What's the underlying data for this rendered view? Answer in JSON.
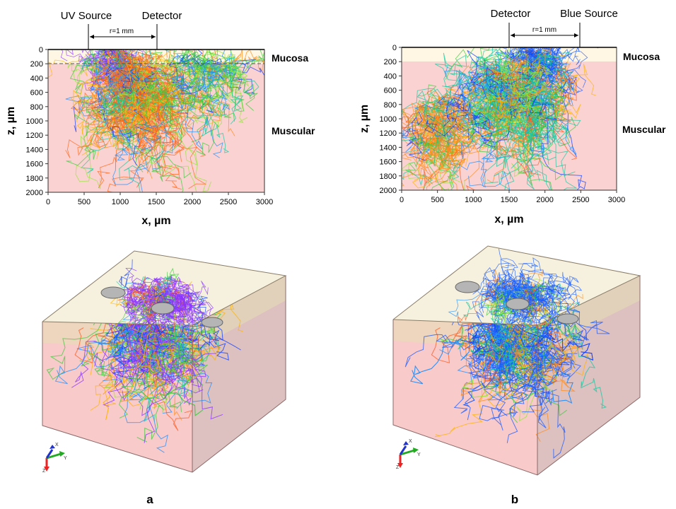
{
  "panels": [
    {
      "label": "a",
      "source_label": "UV Source",
      "detector_label": "Detector",
      "distance_label": "r=1 mm",
      "layers": [
        "Mucosa",
        "Muscular"
      ],
      "xlabel": "x, µm",
      "ylabel": "z, µm",
      "xticks": [
        "0",
        "500",
        "1000",
        "1500",
        "2000",
        "2500",
        "3000"
      ],
      "yticks": [
        "0",
        "200",
        "400",
        "600",
        "800",
        "1000",
        "1200",
        "1400",
        "1600",
        "1800",
        "2000"
      ],
      "dominant_color": "#8a33ff",
      "axis_labels_3d": [
        "X",
        "Y",
        "Z"
      ]
    },
    {
      "label": "b",
      "source_label": "Blue Source",
      "detector_label": "Detector",
      "distance_label": "r=1 mm",
      "layers": [
        "Mucosa",
        "Muscular"
      ],
      "xlabel": "x, µm",
      "ylabel": "z, µm",
      "xticks": [
        "0",
        "500",
        "1000",
        "1500",
        "2000",
        "2500",
        "3000"
      ],
      "yticks": [
        "0",
        "200",
        "400",
        "600",
        "800",
        "1000",
        "1200",
        "1400",
        "1600",
        "1800",
        "2000"
      ],
      "dominant_color": "#1a5cff",
      "axis_labels_3d": [
        "X",
        "Y",
        "Z"
      ]
    }
  ],
  "colors": {
    "mucosa_fill": "#fff6e4",
    "muscular_fill": "#fbd2d2",
    "box_front": "#f8c4c4",
    "box_side": "#d7b5b5",
    "box_top_band": "#e6dfb4",
    "trajectory_palette": [
      "#ff5a1e",
      "#ff8c1a",
      "#3ccc3c",
      "#14c8a0",
      "#1e90ff",
      "#0a3cff",
      "#96e63c",
      "#ffb400"
    ]
  }
}
